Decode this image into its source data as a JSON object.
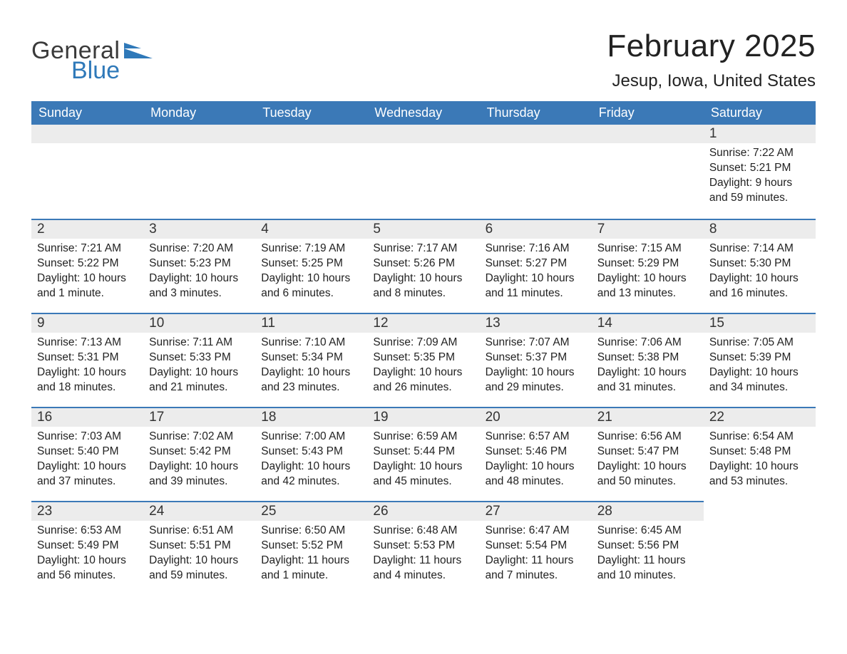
{
  "brand": {
    "general": "General",
    "blue": "Blue",
    "accent_color": "#2f79b9"
  },
  "title": "February 2025",
  "location": "Jesup, Iowa, United States",
  "colors": {
    "header_bg": "#3b79b7",
    "header_text": "#ffffff",
    "daybar_bg": "#ececec",
    "daybar_border": "#3b79b7",
    "body_text": "#222222",
    "page_bg": "#ffffff"
  },
  "weekdays": [
    "Sunday",
    "Monday",
    "Tuesday",
    "Wednesday",
    "Thursday",
    "Friday",
    "Saturday"
  ],
  "grid": {
    "first_weekday_index": 6,
    "rows": 5,
    "cols": 7
  },
  "days": [
    {
      "n": 1,
      "sunrise": "7:22 AM",
      "sunset": "5:21 PM",
      "daylight": "9 hours and 59 minutes."
    },
    {
      "n": 2,
      "sunrise": "7:21 AM",
      "sunset": "5:22 PM",
      "daylight": "10 hours and 1 minute."
    },
    {
      "n": 3,
      "sunrise": "7:20 AM",
      "sunset": "5:23 PM",
      "daylight": "10 hours and 3 minutes."
    },
    {
      "n": 4,
      "sunrise": "7:19 AM",
      "sunset": "5:25 PM",
      "daylight": "10 hours and 6 minutes."
    },
    {
      "n": 5,
      "sunrise": "7:17 AM",
      "sunset": "5:26 PM",
      "daylight": "10 hours and 8 minutes."
    },
    {
      "n": 6,
      "sunrise": "7:16 AM",
      "sunset": "5:27 PM",
      "daylight": "10 hours and 11 minutes."
    },
    {
      "n": 7,
      "sunrise": "7:15 AM",
      "sunset": "5:29 PM",
      "daylight": "10 hours and 13 minutes."
    },
    {
      "n": 8,
      "sunrise": "7:14 AM",
      "sunset": "5:30 PM",
      "daylight": "10 hours and 16 minutes."
    },
    {
      "n": 9,
      "sunrise": "7:13 AM",
      "sunset": "5:31 PM",
      "daylight": "10 hours and 18 minutes."
    },
    {
      "n": 10,
      "sunrise": "7:11 AM",
      "sunset": "5:33 PM",
      "daylight": "10 hours and 21 minutes."
    },
    {
      "n": 11,
      "sunrise": "7:10 AM",
      "sunset": "5:34 PM",
      "daylight": "10 hours and 23 minutes."
    },
    {
      "n": 12,
      "sunrise": "7:09 AM",
      "sunset": "5:35 PM",
      "daylight": "10 hours and 26 minutes."
    },
    {
      "n": 13,
      "sunrise": "7:07 AM",
      "sunset": "5:37 PM",
      "daylight": "10 hours and 29 minutes."
    },
    {
      "n": 14,
      "sunrise": "7:06 AM",
      "sunset": "5:38 PM",
      "daylight": "10 hours and 31 minutes."
    },
    {
      "n": 15,
      "sunrise": "7:05 AM",
      "sunset": "5:39 PM",
      "daylight": "10 hours and 34 minutes."
    },
    {
      "n": 16,
      "sunrise": "7:03 AM",
      "sunset": "5:40 PM",
      "daylight": "10 hours and 37 minutes."
    },
    {
      "n": 17,
      "sunrise": "7:02 AM",
      "sunset": "5:42 PM",
      "daylight": "10 hours and 39 minutes."
    },
    {
      "n": 18,
      "sunrise": "7:00 AM",
      "sunset": "5:43 PM",
      "daylight": "10 hours and 42 minutes."
    },
    {
      "n": 19,
      "sunrise": "6:59 AM",
      "sunset": "5:44 PM",
      "daylight": "10 hours and 45 minutes."
    },
    {
      "n": 20,
      "sunrise": "6:57 AM",
      "sunset": "5:46 PM",
      "daylight": "10 hours and 48 minutes."
    },
    {
      "n": 21,
      "sunrise": "6:56 AM",
      "sunset": "5:47 PM",
      "daylight": "10 hours and 50 minutes."
    },
    {
      "n": 22,
      "sunrise": "6:54 AM",
      "sunset": "5:48 PM",
      "daylight": "10 hours and 53 minutes."
    },
    {
      "n": 23,
      "sunrise": "6:53 AM",
      "sunset": "5:49 PM",
      "daylight": "10 hours and 56 minutes."
    },
    {
      "n": 24,
      "sunrise": "6:51 AM",
      "sunset": "5:51 PM",
      "daylight": "10 hours and 59 minutes."
    },
    {
      "n": 25,
      "sunrise": "6:50 AM",
      "sunset": "5:52 PM",
      "daylight": "11 hours and 1 minute."
    },
    {
      "n": 26,
      "sunrise": "6:48 AM",
      "sunset": "5:53 PM",
      "daylight": "11 hours and 4 minutes."
    },
    {
      "n": 27,
      "sunrise": "6:47 AM",
      "sunset": "5:54 PM",
      "daylight": "11 hours and 7 minutes."
    },
    {
      "n": 28,
      "sunrise": "6:45 AM",
      "sunset": "5:56 PM",
      "daylight": "11 hours and 10 minutes."
    }
  ],
  "labels": {
    "sunrise": "Sunrise:",
    "sunset": "Sunset:",
    "daylight": "Daylight:"
  }
}
